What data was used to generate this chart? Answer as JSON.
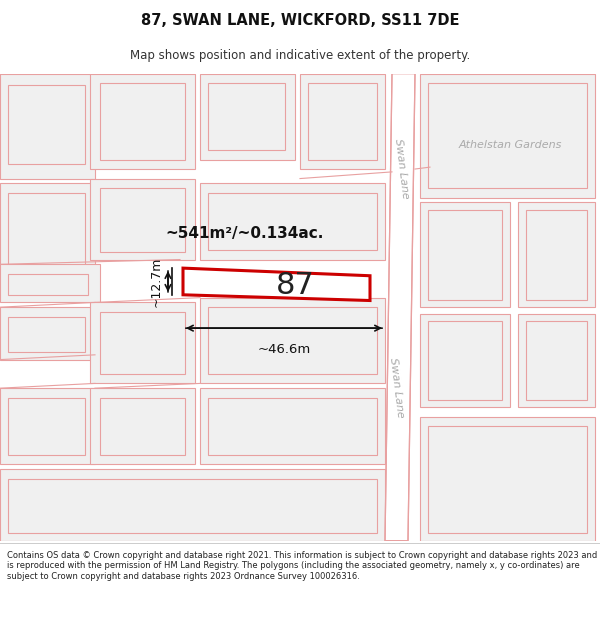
{
  "title": "87, SWAN LANE, WICKFORD, SS11 7DE",
  "subtitle": "Map shows position and indicative extent of the property.",
  "footer": "Contains OS data © Crown copyright and database right 2021. This information is subject to Crown copyright and database rights 2023 and is reproduced with the permission of HM Land Registry. The polygons (including the associated geometry, namely x, y co-ordinates) are subject to Crown copyright and database rights 2023 Ordnance Survey 100026316.",
  "label_87": "87",
  "area_label": "~541m²/~0.134ac.",
  "width_label": "~46.6m",
  "height_label": "~12.7m",
  "swan_lane_label": "Swan Lane",
  "athelstan_label": "Athelstan Gardens",
  "map_bg": "#ffffff",
  "plot_line_color": "#e8a0a0",
  "plot_fill": "#f0f0f0",
  "highlight_fill": "#ffffff",
  "highlight_line": "#cc0000",
  "road_fill": "#ffffff",
  "road_line": "#e8a0a0",
  "text_color": "#222222",
  "muted_text": "#aaaaaa"
}
